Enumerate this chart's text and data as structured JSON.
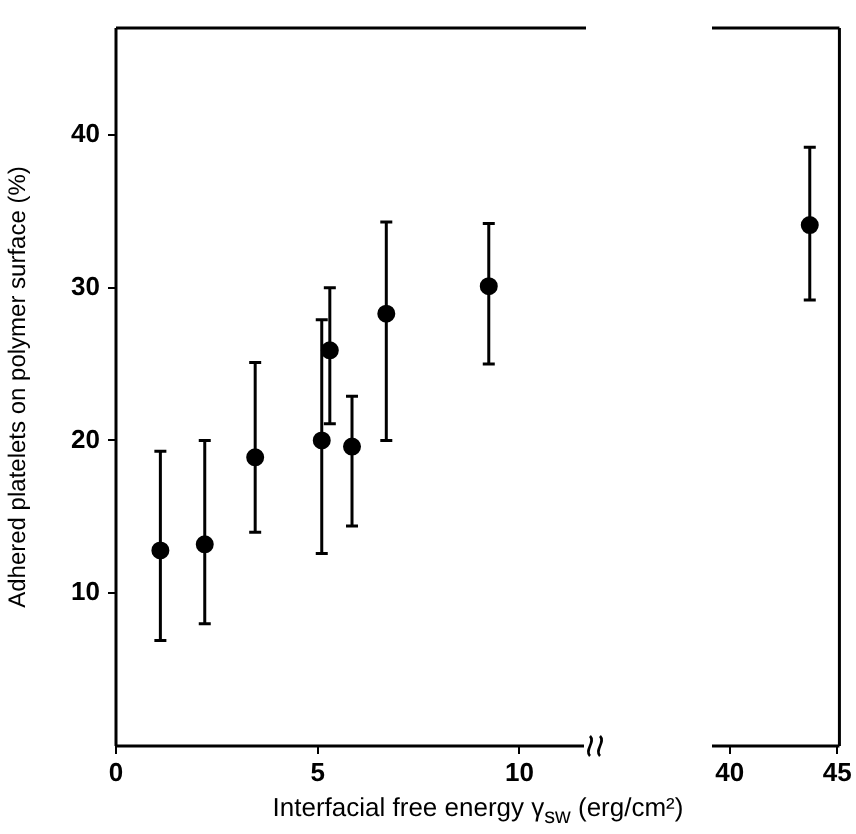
{
  "chart_data": [
    {
      "type": "scatter",
      "xlabel": "Interfacial free energy γ$_{sw}$ (erg/cm²)",
      "ylabel": "Adhered platelets on polymer surface (%)",
      "xlim": [
        0,
        11.65
      ],
      "xticks": [
        0,
        5,
        10
      ],
      "ylim": [
        0,
        47
      ],
      "yticks": [
        10,
        20,
        30,
        40
      ],
      "marker": "circle",
      "series": [
        {
          "color": "#000000",
          "x": [
            1.1,
            2.2,
            3.45,
            5.1,
            5.3,
            5.85,
            6.7,
            9.24
          ],
          "values": [
            12.8,
            13.2,
            18.9,
            20.0,
            25.9,
            19.6,
            28.3,
            30.1
          ],
          "errors": [
            [
              6.9,
              19.3
            ],
            [
              8.0,
              20.0
            ],
            [
              14.0,
              25.1
            ],
            [
              12.6,
              27.9
            ],
            [
              21.1,
              30.0
            ],
            [
              14.4,
              22.9
            ],
            [
              20.0,
              34.3
            ],
            [
              25.0,
              34.2
            ]
          ]
        }
      ]
    },
    {
      "type": "scatter",
      "xlim": [
        39.17,
        45.1
      ],
      "xticks": [
        40,
        45
      ],
      "ylim": [
        0,
        47
      ],
      "tick_labels": "x",
      "marker": "circle",
      "series": [
        {
          "color": "#000000",
          "x": [
            43.72
          ],
          "values": [
            34.1
          ],
          "errors": [
            [
              29.2,
              39.2
            ]
          ]
        }
      ]
    }
  ]
}
